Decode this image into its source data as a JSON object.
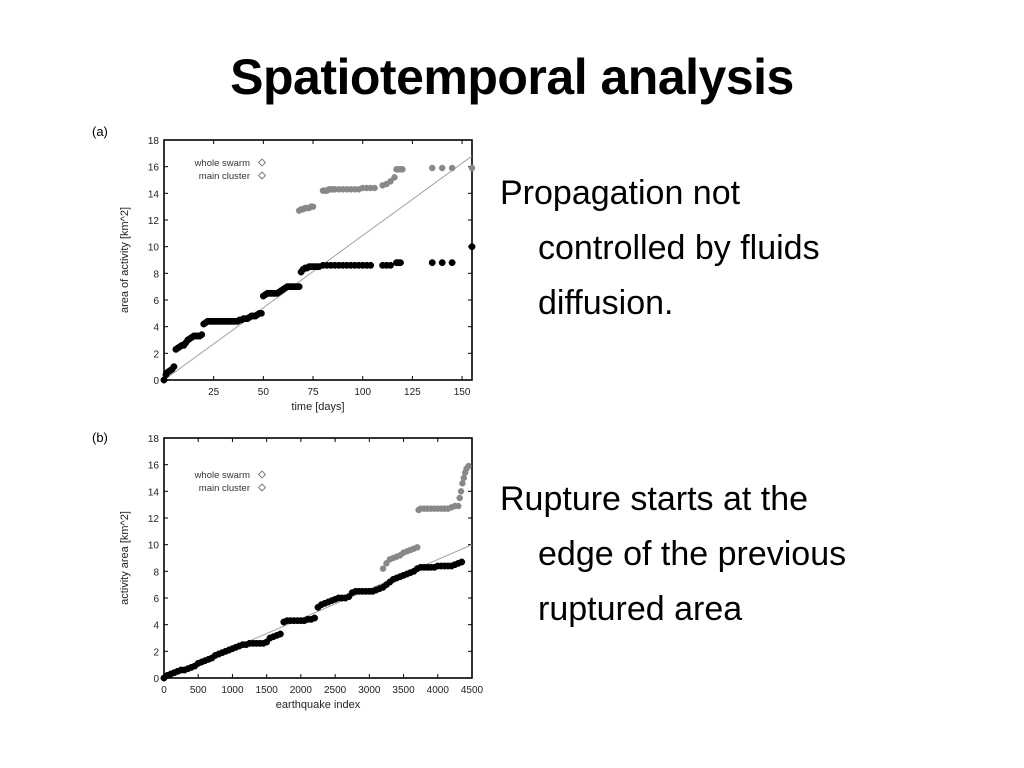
{
  "slide": {
    "title": "Spatiotemporal analysis",
    "bullets": [
      {
        "first_line": "Propagation not",
        "rest_lines": [
          "controlled by fluids",
          "diffusion."
        ]
      },
      {
        "first_line": "Rupture starts at the",
        "rest_lines": [
          "edge of the previous",
          "ruptured area"
        ]
      }
    ]
  },
  "chart_data": [
    {
      "panel_label": "(a)",
      "type": "scatter",
      "xlabel": "time  [days]",
      "ylabel": "area of activity  [km^2]",
      "xlim": [
        0,
        155
      ],
      "ylim": [
        0,
        18
      ],
      "xticks": [
        25,
        50,
        75,
        100,
        125,
        150
      ],
      "yticks": [
        0,
        2,
        4,
        6,
        8,
        10,
        12,
        14,
        16,
        18
      ],
      "legend_position": "top-left",
      "fit_line": {
        "x": [
          0,
          155
        ],
        "y": [
          0,
          16.8
        ]
      },
      "series": [
        {
          "name": "whole swarm",
          "color": "#888888",
          "x": [
            68,
            69,
            70,
            71,
            72,
            73,
            74,
            75,
            80,
            81,
            82,
            83,
            84,
            85,
            86,
            88,
            90,
            92,
            94,
            96,
            98,
            100,
            102,
            104,
            106,
            110,
            112,
            114,
            116,
            117,
            118,
            119,
            120,
            135,
            140,
            145,
            155
          ],
          "y": [
            12.7,
            12.8,
            12.8,
            12.9,
            12.9,
            12.9,
            13.0,
            13.0,
            14.2,
            14.2,
            14.2,
            14.3,
            14.3,
            14.3,
            14.3,
            14.3,
            14.3,
            14.3,
            14.3,
            14.3,
            14.3,
            14.4,
            14.4,
            14.4,
            14.4,
            14.6,
            14.7,
            14.9,
            15.2,
            15.8,
            15.8,
            15.8,
            15.8,
            15.9,
            15.9,
            15.9,
            15.9
          ]
        },
        {
          "name": "main cluster",
          "color": "#000000",
          "x": [
            0,
            1,
            2,
            3,
            4,
            5,
            6,
            7,
            8,
            9,
            10,
            11,
            12,
            13,
            14,
            15,
            16,
            17,
            18,
            19,
            20,
            21,
            22,
            23,
            24,
            25,
            26,
            27,
            28,
            29,
            30,
            31,
            32,
            33,
            34,
            35,
            36,
            37,
            38,
            39,
            40,
            41,
            42,
            43,
            44,
            45,
            46,
            47,
            48,
            49,
            50,
            51,
            52,
            53,
            54,
            55,
            56,
            57,
            58,
            59,
            60,
            61,
            62,
            63,
            64,
            65,
            66,
            67,
            68,
            69,
            70,
            71,
            72,
            73,
            74,
            75,
            76,
            77,
            78,
            80,
            82,
            84,
            86,
            88,
            90,
            92,
            94,
            96,
            98,
            100,
            102,
            104,
            110,
            112,
            114,
            117,
            118,
            119,
            135,
            140,
            145,
            155
          ],
          "y": [
            0,
            0.4,
            0.6,
            0.7,
            0.8,
            1.0,
            2.3,
            2.4,
            2.5,
            2.6,
            2.6,
            2.8,
            3.0,
            3.1,
            3.2,
            3.3,
            3.3,
            3.3,
            3.3,
            3.4,
            4.2,
            4.3,
            4.4,
            4.4,
            4.4,
            4.4,
            4.4,
            4.4,
            4.4,
            4.4,
            4.4,
            4.4,
            4.4,
            4.4,
            4.4,
            4.4,
            4.4,
            4.4,
            4.5,
            4.5,
            4.6,
            4.6,
            4.6,
            4.7,
            4.8,
            4.8,
            4.8,
            4.9,
            5.0,
            5.0,
            6.3,
            6.4,
            6.5,
            6.5,
            6.5,
            6.5,
            6.5,
            6.5,
            6.6,
            6.7,
            6.8,
            6.9,
            7.0,
            7.0,
            7.0,
            7.0,
            7.0,
            7.0,
            7.0,
            8.1,
            8.3,
            8.4,
            8.4,
            8.5,
            8.5,
            8.5,
            8.5,
            8.5,
            8.5,
            8.6,
            8.6,
            8.6,
            8.6,
            8.6,
            8.6,
            8.6,
            8.6,
            8.6,
            8.6,
            8.6,
            8.6,
            8.6,
            8.6,
            8.6,
            8.6,
            8.8,
            8.8,
            8.8,
            8.8,
            8.8,
            8.8,
            10.0
          ]
        }
      ]
    },
    {
      "panel_label": "(b)",
      "type": "scatter",
      "xlabel": "earthquake index",
      "ylabel": "activity area [km^2]",
      "xlim": [
        0,
        4500
      ],
      "ylim": [
        0,
        18
      ],
      "xticks": [
        0,
        500,
        1000,
        1500,
        2000,
        2500,
        3000,
        3500,
        4000,
        4500
      ],
      "yticks": [
        0,
        2,
        4,
        6,
        8,
        10,
        12,
        14,
        16,
        18
      ],
      "legend_position": "top-left",
      "fit_line": {
        "x": [
          0,
          4500
        ],
        "y": [
          0,
          10.0
        ]
      },
      "series": [
        {
          "name": "whole swarm",
          "color": "#888888",
          "x": [
            3200,
            3250,
            3300,
            3350,
            3400,
            3450,
            3500,
            3550,
            3600,
            3650,
            3700,
            3720,
            3750,
            3800,
            3850,
            3900,
            3950,
            4000,
            4050,
            4100,
            4150,
            4200,
            4250,
            4300,
            4320,
            4340,
            4360,
            4380,
            4400,
            4420,
            4450
          ],
          "y": [
            8.2,
            8.6,
            8.9,
            9.0,
            9.1,
            9.2,
            9.4,
            9.5,
            9.6,
            9.7,
            9.8,
            12.6,
            12.7,
            12.7,
            12.7,
            12.7,
            12.7,
            12.7,
            12.7,
            12.7,
            12.7,
            12.8,
            12.9,
            12.9,
            13.5,
            14.0,
            14.6,
            15.0,
            15.4,
            15.7,
            15.9
          ]
        },
        {
          "name": "main cluster",
          "color": "#000000",
          "x": [
            0,
            50,
            100,
            150,
            200,
            250,
            300,
            350,
            400,
            450,
            500,
            550,
            600,
            650,
            700,
            750,
            800,
            850,
            900,
            950,
            1000,
            1050,
            1100,
            1150,
            1200,
            1250,
            1300,
            1350,
            1400,
            1450,
            1500,
            1550,
            1600,
            1650,
            1700,
            1750,
            1800,
            1850,
            1900,
            1950,
            2000,
            2050,
            2100,
            2150,
            2200,
            2250,
            2300,
            2350,
            2400,
            2450,
            2500,
            2550,
            2600,
            2650,
            2700,
            2750,
            2800,
            2850,
            2900,
            2950,
            3000,
            3050,
            3100,
            3150,
            3200,
            3250,
            3300,
            3350,
            3400,
            3450,
            3500,
            3550,
            3600,
            3650,
            3700,
            3750,
            3800,
            3850,
            3900,
            3950,
            4000,
            4050,
            4100,
            4150,
            4200,
            4250,
            4300,
            4350
          ],
          "y": [
            0,
            0.2,
            0.3,
            0.4,
            0.5,
            0.6,
            0.6,
            0.7,
            0.8,
            0.9,
            1.1,
            1.2,
            1.3,
            1.4,
            1.5,
            1.7,
            1.8,
            1.9,
            2.0,
            2.1,
            2.2,
            2.3,
            2.4,
            2.5,
            2.5,
            2.6,
            2.6,
            2.6,
            2.6,
            2.6,
            2.7,
            3.0,
            3.1,
            3.2,
            3.3,
            4.2,
            4.3,
            4.3,
            4.3,
            4.3,
            4.3,
            4.3,
            4.4,
            4.4,
            4.5,
            5.3,
            5.5,
            5.6,
            5.7,
            5.8,
            5.9,
            6.0,
            6.0,
            6.0,
            6.1,
            6.4,
            6.5,
            6.5,
            6.5,
            6.5,
            6.5,
            6.5,
            6.6,
            6.7,
            6.8,
            7.0,
            7.2,
            7.4,
            7.5,
            7.6,
            7.7,
            7.8,
            7.9,
            8.0,
            8.2,
            8.3,
            8.3,
            8.3,
            8.3,
            8.3,
            8.4,
            8.4,
            8.4,
            8.4,
            8.4,
            8.5,
            8.6,
            8.7
          ]
        }
      ]
    }
  ]
}
